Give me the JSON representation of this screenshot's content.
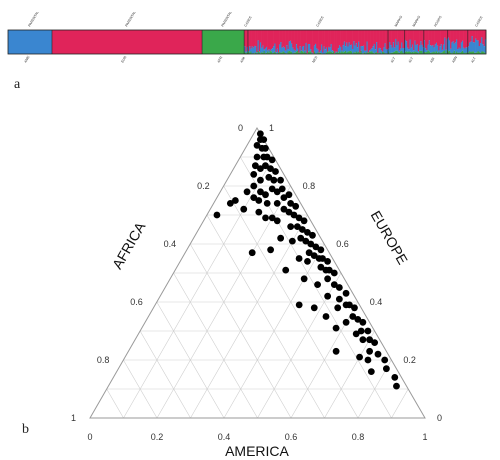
{
  "chart_data": [
    {
      "panel": "a",
      "type": "bar",
      "description_ref": "ancestry-bar",
      "clusters": [
        {
          "name": "AMERICA",
          "color": "#3a86d0"
        },
        {
          "name": "EUROPE",
          "color": "#e0245a"
        },
        {
          "name": "AFRICA",
          "color": "#3aa84a"
        }
      ],
      "groups": [
        {
          "top_label": "PARENTAL",
          "bottom_label": "AME",
          "start": 0.0,
          "end": 0.092,
          "america": 0.97,
          "europe": 0.02,
          "africa": 0.01
        },
        {
          "top_label": "PARENTAL",
          "bottom_label": "EUR",
          "start": 0.092,
          "end": 0.406,
          "america": 0.01,
          "europe": 0.98,
          "africa": 0.01
        },
        {
          "top_label": "PARENTAL",
          "bottom_label": "AFR",
          "start": 0.406,
          "end": 0.494,
          "america": 0.01,
          "europe": 0.02,
          "africa": 0.97
        },
        {
          "top_label": "CASES",
          "bottom_label": "AIM",
          "start": 0.494,
          "end": 0.502,
          "america": 0.25,
          "europe": 0.68,
          "africa": 0.07
        },
        {
          "top_label": "CASES",
          "bottom_label": "NES",
          "start": 0.502,
          "end": 0.795,
          "america": 0.22,
          "europe": 0.71,
          "africa": 0.07
        },
        {
          "top_label": "MARKS",
          "bottom_label": "ALT",
          "start": 0.795,
          "end": 0.83,
          "america": 0.3,
          "europe": 0.62,
          "africa": 0.08
        },
        {
          "top_label": "MARKS",
          "bottom_label": "ALT",
          "start": 0.83,
          "end": 0.87,
          "america": 0.28,
          "europe": 0.64,
          "africa": 0.08
        },
        {
          "top_label": "HOSPS",
          "bottom_label": "ABI",
          "start": 0.87,
          "end": 0.92,
          "america": 0.3,
          "europe": 0.6,
          "africa": 0.1
        },
        {
          "top_label": "",
          "bottom_label": "ABN",
          "start": 0.92,
          "end": 0.962,
          "america": 0.4,
          "europe": 0.52,
          "africa": 0.08
        },
        {
          "top_label": "CASES",
          "bottom_label": "ALT",
          "start": 0.962,
          "end": 1.0,
          "america": 0.45,
          "europe": 0.47,
          "africa": 0.08
        }
      ]
    },
    {
      "panel": "b",
      "type": "scatter",
      "ternary": true,
      "axes": {
        "left": "AFRICA",
        "right": "EUROPE",
        "bottom": "AMERICA"
      },
      "ticks": [
        0,
        0.2,
        0.4,
        0.6,
        0.8,
        1
      ],
      "left_tick_labels": [
        "0",
        "0.2",
        "0.4",
        "0.6",
        "0.8",
        "1"
      ],
      "right_tick_labels": [
        "1",
        "0.8",
        "0.6",
        "0.4",
        "0.2",
        "0"
      ],
      "bottom_tick_labels": [
        "0",
        "0.2",
        "0.4",
        "0.6",
        "0.8",
        "1"
      ],
      "grid": true,
      "points_AME_AFR": [
        [
          0.02,
          0.0
        ],
        [
          0.03,
          0.01
        ],
        [
          0.04,
          0.0
        ],
        [
          0.05,
          0.02
        ],
        [
          0.03,
          0.03
        ],
        [
          0.06,
          0.01
        ],
        [
          0.07,
          0.03
        ],
        [
          0.05,
          0.05
        ],
        [
          0.08,
          0.02
        ],
        [
          0.09,
          0.04
        ],
        [
          0.06,
          0.07
        ],
        [
          0.1,
          0.01
        ],
        [
          0.11,
          0.03
        ],
        [
          0.08,
          0.06
        ],
        [
          0.12,
          0.05
        ],
        [
          0.07,
          0.09
        ],
        [
          0.13,
          0.02
        ],
        [
          0.1,
          0.08
        ],
        [
          0.14,
          0.04
        ],
        [
          0.09,
          0.11
        ],
        [
          0.15,
          0.06
        ],
        [
          0.12,
          0.1
        ],
        [
          0.16,
          0.02
        ],
        [
          0.11,
          0.13
        ],
        [
          0.17,
          0.05
        ],
        [
          0.14,
          0.09
        ],
        [
          0.18,
          0.03
        ],
        [
          0.13,
          0.12
        ],
        [
          0.19,
          0.07
        ],
        [
          0.16,
          0.1
        ],
        [
          0.2,
          0.04
        ],
        [
          0.21,
          0.02
        ],
        [
          0.22,
          0.06
        ],
        [
          0.18,
          0.13
        ],
        [
          0.23,
          0.03
        ],
        [
          0.24,
          0.05
        ],
        [
          0.2,
          0.11
        ],
        [
          0.25,
          0.02
        ],
        [
          0.26,
          0.04
        ],
        [
          0.27,
          0.07
        ],
        [
          0.28,
          0.03
        ],
        [
          0.29,
          0.05
        ],
        [
          0.3,
          0.02
        ],
        [
          0.31,
          0.04
        ],
        [
          0.32,
          0.06
        ],
        [
          0.33,
          0.03
        ],
        [
          0.34,
          0.05
        ],
        [
          0.35,
          0.02
        ],
        [
          0.36,
          0.04
        ],
        [
          0.37,
          0.06
        ],
        [
          0.38,
          0.03
        ],
        [
          0.39,
          0.05
        ],
        [
          0.4,
          0.02
        ],
        [
          0.41,
          0.04
        ],
        [
          0.42,
          0.03
        ],
        [
          0.43,
          0.05
        ],
        [
          0.44,
          0.02
        ],
        [
          0.45,
          0.04
        ],
        [
          0.46,
          0.03
        ],
        [
          0.47,
          0.05
        ],
        [
          0.48,
          0.02
        ],
        [
          0.5,
          0.04
        ],
        [
          0.52,
          0.03
        ],
        [
          0.54,
          0.05
        ],
        [
          0.55,
          0.02
        ],
        [
          0.57,
          0.04
        ],
        [
          0.58,
          0.03
        ],
        [
          0.6,
          0.02
        ],
        [
          0.61,
          0.04
        ],
        [
          0.63,
          0.03
        ],
        [
          0.65,
          0.02
        ],
        [
          0.66,
          0.04
        ],
        [
          0.68,
          0.02
        ],
        [
          0.7,
          0.03
        ],
        [
          0.72,
          0.02
        ],
        [
          0.75,
          0.03
        ],
        [
          0.78,
          0.02
        ],
        [
          0.8,
          0.03
        ],
        [
          0.84,
          0.02
        ],
        [
          0.86,
          0.03
        ],
        [
          0.06,
          0.19
        ],
        [
          0.05,
          0.21
        ],
        [
          0.03,
          0.27
        ],
        [
          0.1,
          0.18
        ],
        [
          0.2,
          0.23
        ],
        [
          0.25,
          0.17
        ],
        [
          0.33,
          0.16
        ],
        [
          0.4,
          0.12
        ],
        [
          0.43,
          0.18
        ],
        [
          0.48,
          0.14
        ],
        [
          0.53,
          0.12
        ],
        [
          0.58,
          0.11
        ],
        [
          0.62,
          0.15
        ],
        [
          0.7,
          0.09
        ],
        [
          0.73,
          0.07
        ],
        [
          0.76,
          0.08
        ],
        [
          0.15,
          0.14
        ],
        [
          0.22,
          0.1
        ],
        [
          0.26,
          0.12
        ],
        [
          0.3,
          0.09
        ],
        [
          0.35,
          0.1
        ],
        [
          0.38,
          0.08
        ],
        [
          0.45,
          0.09
        ],
        [
          0.5,
          0.08
        ],
        [
          0.55,
          0.07
        ],
        [
          0.6,
          0.07
        ],
        [
          0.65,
          0.06
        ],
        [
          0.68,
          0.05
        ],
        [
          0.72,
          0.05
        ],
        [
          0.08,
          0.14
        ]
      ]
    }
  ],
  "panels": {
    "a": "a",
    "b": "b"
  }
}
